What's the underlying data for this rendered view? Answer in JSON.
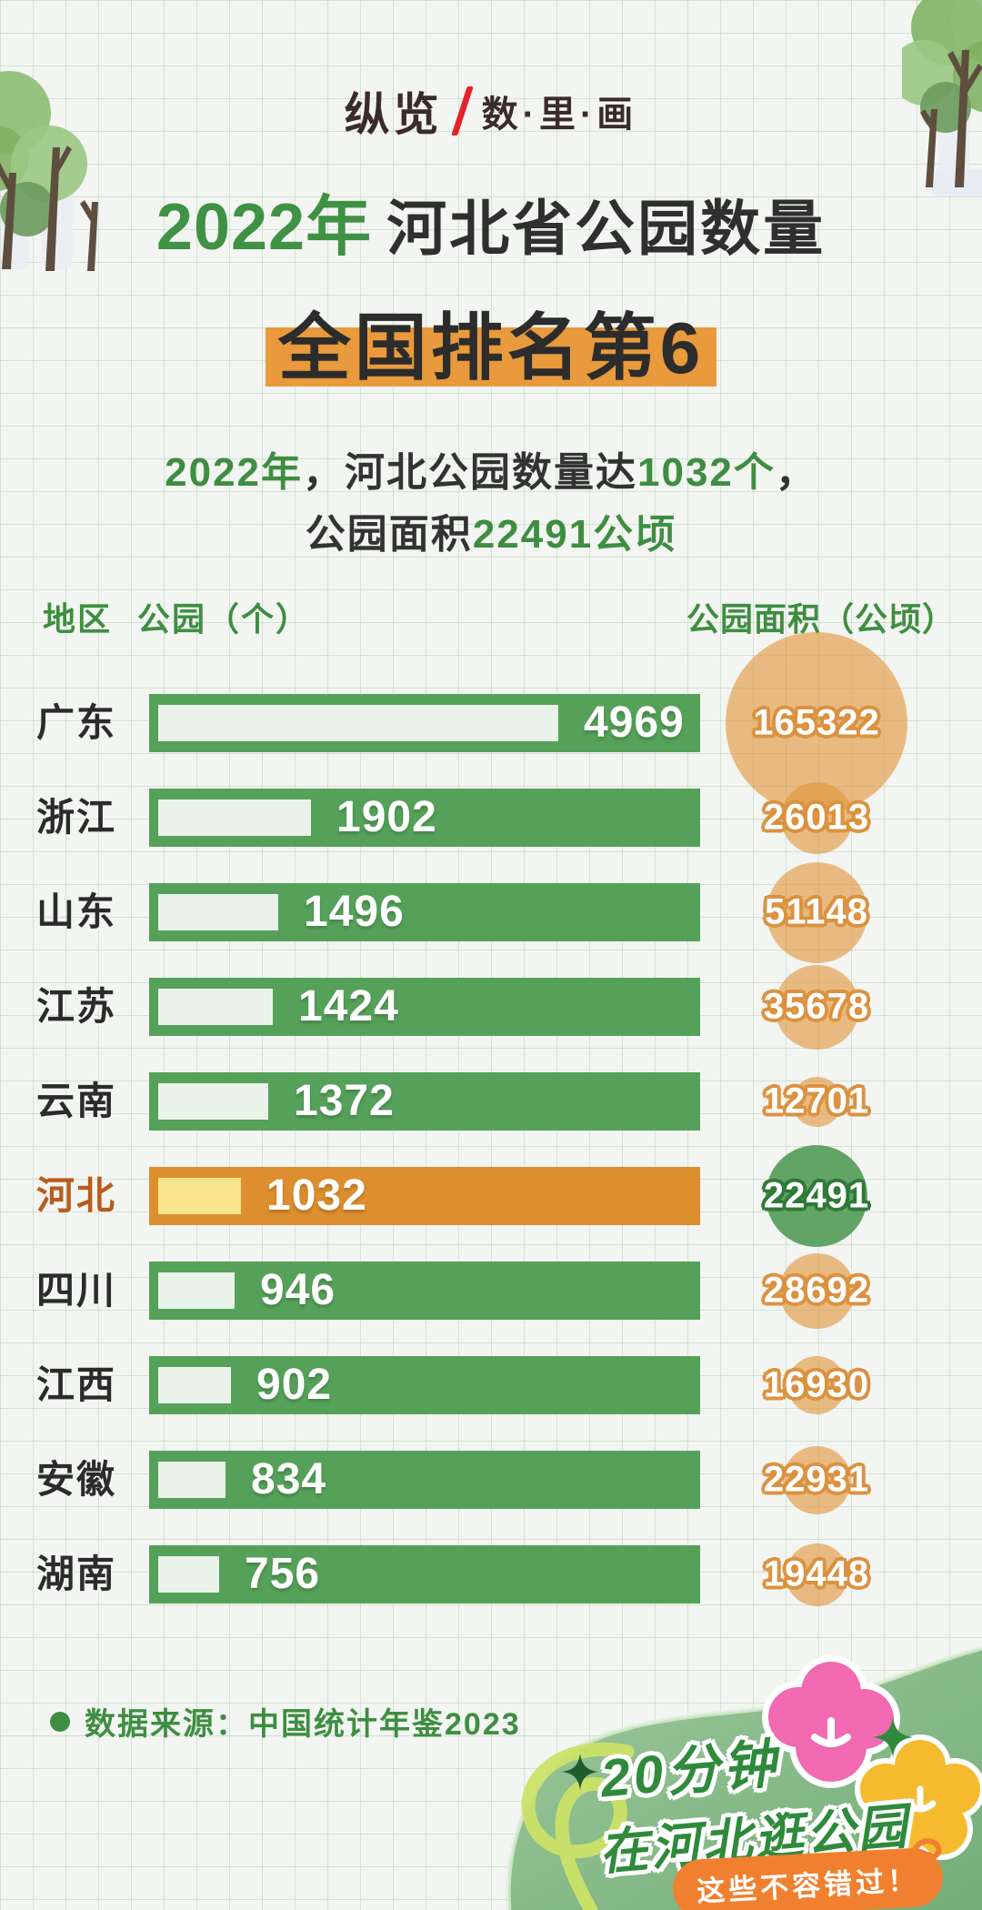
{
  "brand": {
    "left": "纵览",
    "right": "数·里·画"
  },
  "title": {
    "year": "2022年",
    "rest": "河北省公园数量",
    "subtitle": "全国排名第6"
  },
  "description": {
    "l1_green1": "2022年",
    "l1_dark1": "，河北公园数量达",
    "l1_green2": "1032个",
    "l1_dark2": "，",
    "l2_dark": "公园面积",
    "l2_green": "22491公顷"
  },
  "table": {
    "col_region": "地区",
    "col_parks": "公园（个）",
    "col_area": "公园面积（公顷）"
  },
  "chart_data": {
    "type": "bar",
    "title": "2022年 河北省公园数量 全国排名第6",
    "categories": [
      "广东",
      "浙江",
      "山东",
      "江苏",
      "云南",
      "河北",
      "四川",
      "江西",
      "安徽",
      "湖南"
    ],
    "series": [
      {
        "name": "公园（个）",
        "values": [
          4969,
          1902,
          1496,
          1424,
          1372,
          1032,
          946,
          902,
          834,
          756
        ]
      },
      {
        "name": "公园面积（公顷）",
        "values": [
          165322,
          26013,
          51148,
          35678,
          12701,
          22491,
          28692,
          16930,
          22931,
          19448
        ]
      }
    ],
    "highlight_index": 5,
    "highlight_category": "河北",
    "xmax": 4969,
    "legend_position": "none",
    "grid": true
  },
  "footer": {
    "source": "数据来源：中国统计年鉴2023"
  },
  "badge": {
    "line1": "20分钟",
    "line2": "在河北逛公园",
    "pill": "这些不容错过！"
  },
  "icons": {
    "source_bullet": "circle",
    "sparkle": "four-point-star",
    "flower_pink": "flower",
    "flower_yellow": "flower",
    "trees": "park-trees",
    "squiggle": "route-line"
  },
  "colors": {
    "bar_green": "#55a159",
    "bar_fill_light": "#e9f3e9",
    "highlight_bar_orange": "#dd8e2e",
    "highlight_fill_yellow": "#f9e48b",
    "circle_orange": "#e0963c",
    "circle_green": "#61a465",
    "title_green": "#3f9143",
    "subtitle_band_orange": "#e89a3c",
    "text_dark": "#2f2f2f",
    "source_green": "#3e8e41",
    "brand_red": "#e62129",
    "badge_green": "#84b989",
    "pill_orange": "#f0802f",
    "flower_pink": "#f169b0",
    "flower_yellow": "#f6ba2e"
  }
}
